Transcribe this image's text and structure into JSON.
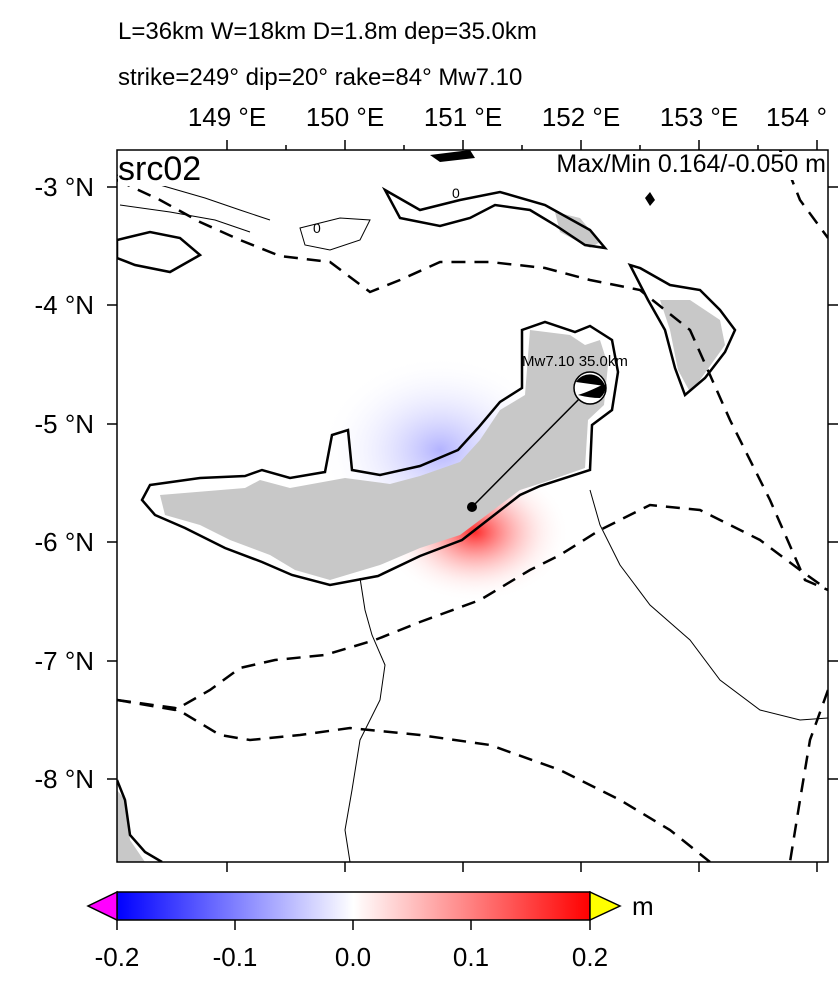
{
  "header": {
    "line1": "L=36km W=18km D=1.8m dep=35.0km",
    "line2": "strike=249° dip=20° rake=84° Mw7.10"
  },
  "map": {
    "source_label": "src02",
    "maxmin_label": "Max/Min 0.164/-0.050 m",
    "mechanism_label": "Mw7.10  35.0km",
    "contour_label": "0",
    "lon_ticks": [
      "149 °E",
      "150 °E",
      "151 °E",
      "152 °E",
      "153 °E",
      "154 °"
    ],
    "lat_ticks": [
      "-3 °N",
      "-4 °N",
      "-5 °N",
      "-6 °N",
      "-7 °N",
      "-8 °N"
    ],
    "land_color": "#c8c8c8",
    "positive_color": "#ff0000",
    "negative_color": "#0000ff"
  },
  "colorbar": {
    "unit": "m",
    "ticks": [
      "-0.2",
      "-0.1",
      "0.0",
      "0.1",
      "0.2"
    ],
    "range": [
      -0.2,
      0.2
    ],
    "low_overflow_color": "#ff00ff",
    "high_overflow_color": "#ffff00"
  }
}
